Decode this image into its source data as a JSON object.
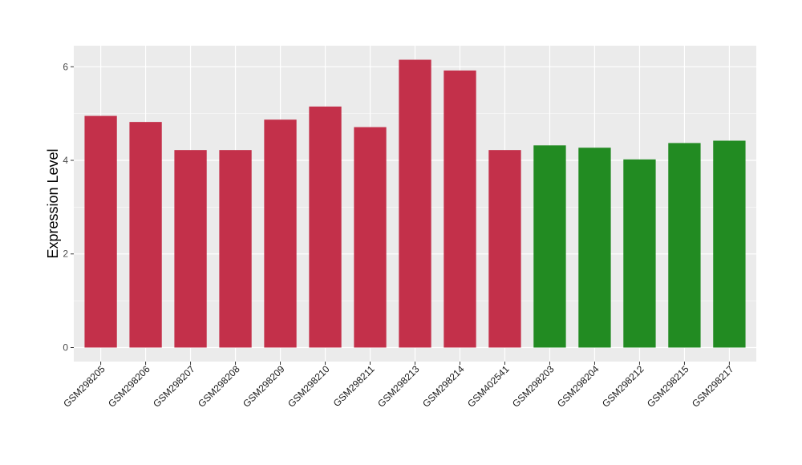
{
  "chart_data": {
    "type": "bar",
    "title": "",
    "xlabel": "",
    "ylabel": "Expression Level",
    "ylim": [
      -0.3,
      6.45
    ],
    "yticks": [
      0,
      2,
      4,
      6
    ],
    "grid": true,
    "categories": [
      "GSM298205",
      "GSM298206",
      "GSM298207",
      "GSM298208",
      "GSM298209",
      "GSM298210",
      "GSM298211",
      "GSM298213",
      "GSM298214",
      "GSM402541",
      "GSM298203",
      "GSM298204",
      "GSM298212",
      "GSM298215",
      "GSM298217"
    ],
    "values": [
      4.95,
      4.82,
      4.22,
      4.22,
      4.87,
      5.15,
      4.71,
      6.15,
      5.92,
      4.22,
      4.32,
      4.27,
      4.02,
      4.37,
      4.42
    ],
    "groups": [
      "a",
      "a",
      "a",
      "a",
      "a",
      "a",
      "a",
      "a",
      "a",
      "a",
      "b",
      "b",
      "b",
      "b",
      "b"
    ],
    "colors": {
      "a": "#c3304a",
      "b": "#228b22"
    },
    "panel_background": "#ebebeb",
    "grid_color": "#ffffff"
  }
}
